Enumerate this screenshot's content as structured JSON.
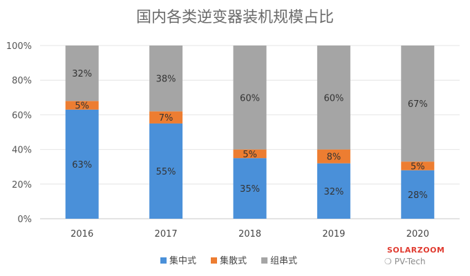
{
  "chart_data": {
    "type": "bar",
    "stacked": true,
    "title": "国内各类逆变器装机规模占比",
    "categories": [
      "2016",
      "2017",
      "2018",
      "2019",
      "2020"
    ],
    "series": [
      {
        "name": "集中式",
        "values": [
          63,
          55,
          35,
          32,
          28
        ],
        "labels": [
          "63%",
          "55%",
          "35%",
          "32%",
          "28%"
        ],
        "color": "#4a90d9"
      },
      {
        "name": "集散式",
        "values": [
          5,
          7,
          5,
          8,
          5
        ],
        "labels": [
          "5%",
          "7%",
          "5%",
          "8%",
          "5%"
        ],
        "color": "#ed7d31"
      },
      {
        "name": "组串式",
        "values": [
          32,
          38,
          60,
          60,
          67
        ],
        "labels": [
          "32%",
          "38%",
          "60%",
          "60%",
          "67%"
        ],
        "color": "#a5a5a5"
      }
    ],
    "yticks": [
      "0%",
      "20%",
      "40%",
      "60%",
      "80%",
      "100%"
    ],
    "ylim": [
      0,
      100
    ],
    "grid": true,
    "legend": "bottom"
  },
  "watermark": {
    "brand": "SOLARZOOM",
    "source": "PV-Tech",
    "icon": "wechat-icon"
  }
}
